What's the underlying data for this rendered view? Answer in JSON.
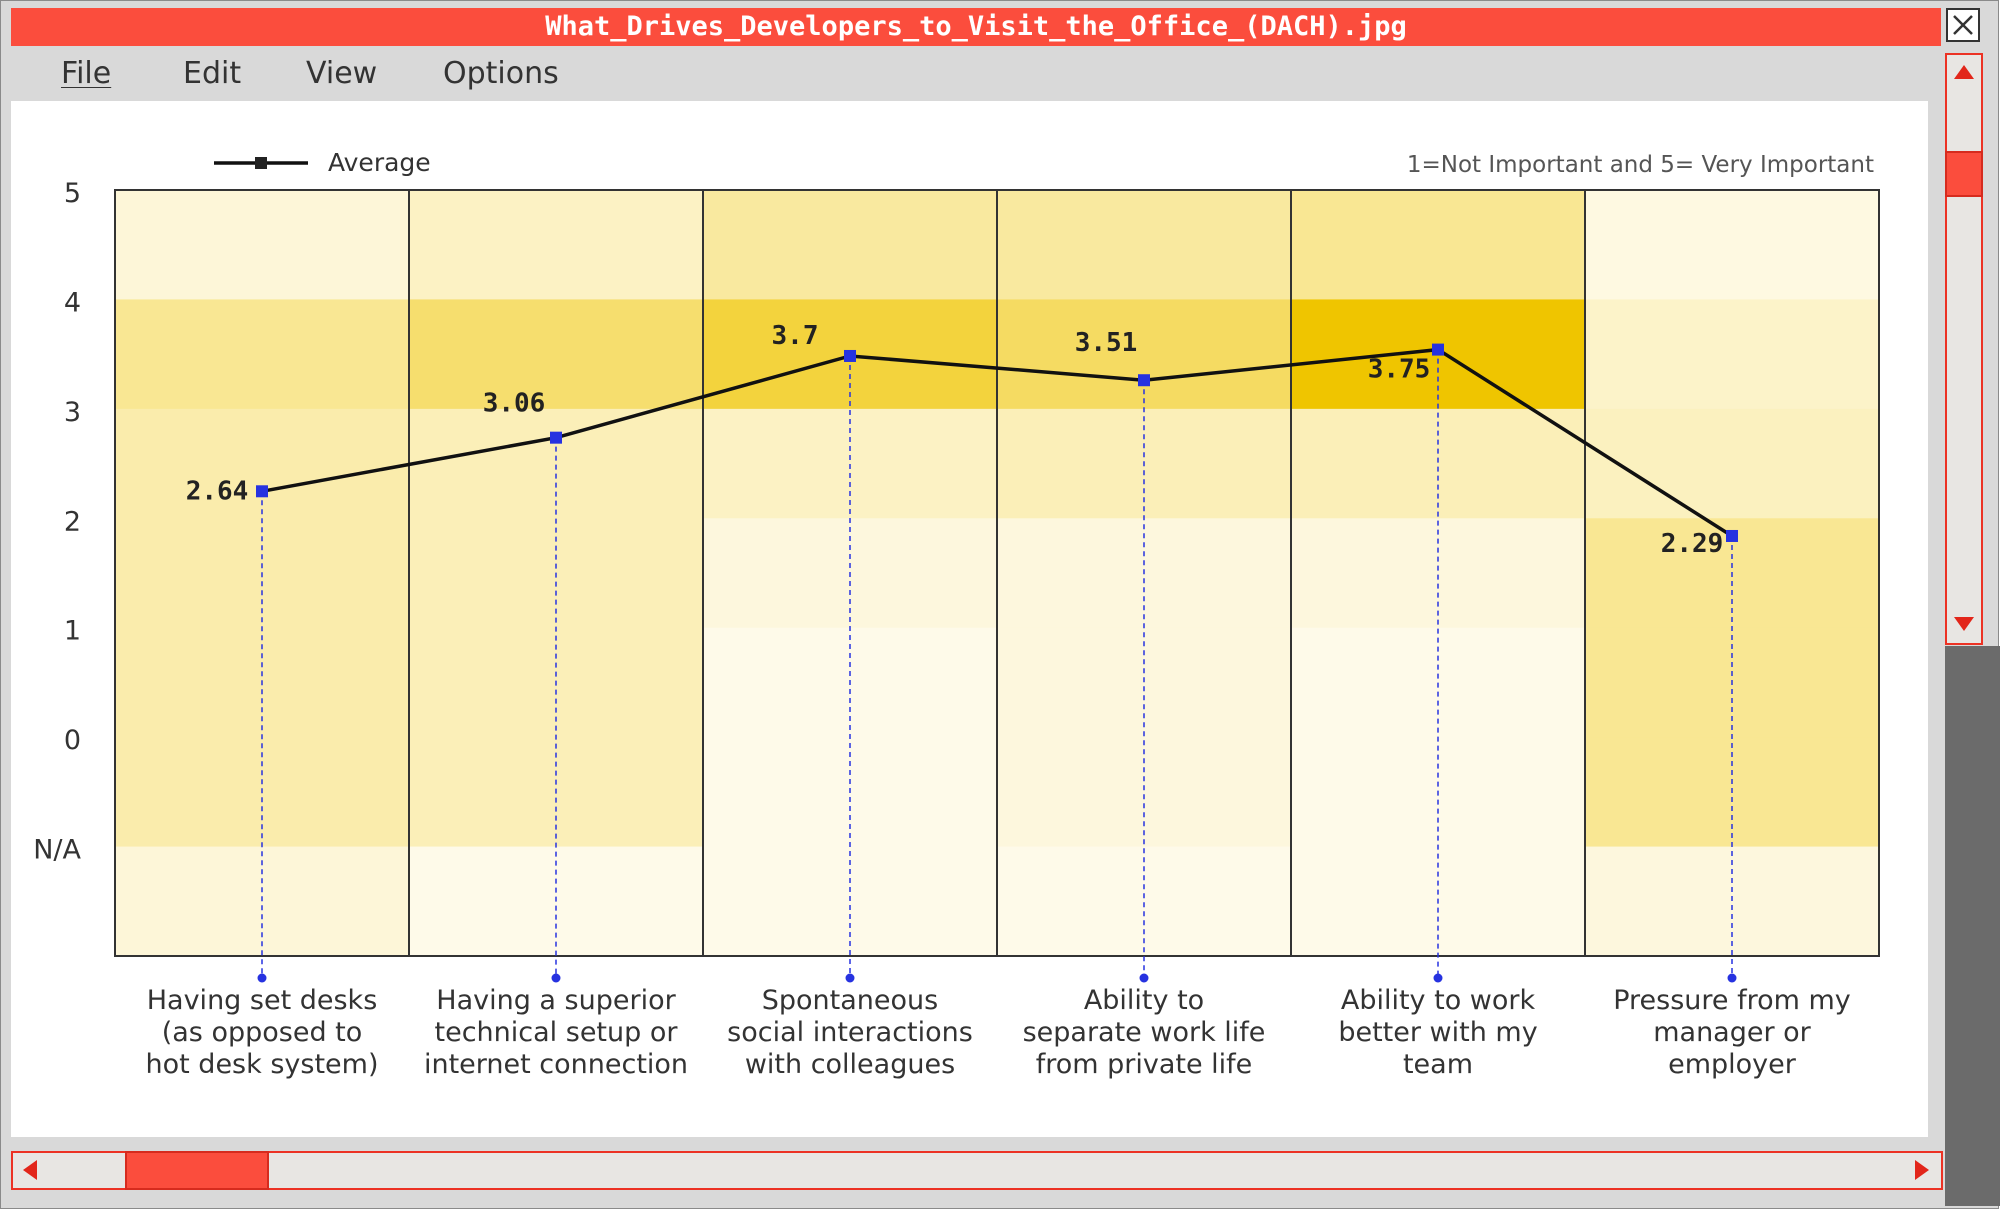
{
  "window": {
    "title": "What_Drives_Developers_to_Visit_the_Office_(DACH).jpg",
    "menu": [
      "File",
      "Edit",
      "View",
      "Options"
    ],
    "accent_color": "#fb4d3d",
    "icons": {
      "close": "close-x-icon",
      "scroll_up": "triangle-up-icon",
      "scroll_down": "triangle-down-icon",
      "scroll_left": "triangle-left-icon",
      "scroll_right": "triangle-right-icon"
    },
    "scroll": {
      "vertical_thumb_fraction": 0.15,
      "horizontal_thumb_fraction": 0.06
    }
  },
  "chart_data": {
    "type": "heatmap",
    "subtitle": "1=Not Important and 5= Very Important",
    "legend": {
      "label": "Average",
      "position": "top-left"
    },
    "y_ticks": [
      "5",
      "4",
      "3",
      "2",
      "1",
      "0",
      "N/A"
    ],
    "categories": [
      "Having set desks (as opposed to hot desk system)",
      "Having a superior technical setup or internet connection",
      "Spontaneous social interactions with colleagues",
      "Ability to separate work life from private life",
      "Ability to work better with my team",
      "Pressure from my manager or employer"
    ],
    "category_lines": [
      [
        "Having set desks",
        "(as opposed to",
        "hot desk system)"
      ],
      [
        "Having a superior",
        "technical setup or",
        "internet connection"
      ],
      [
        "Spontaneous",
        "social interactions",
        "with colleagues"
      ],
      [
        "Ability to",
        "separate work life",
        "from private life"
      ],
      [
        "Ability to work",
        "better with my",
        "team"
      ],
      [
        "Pressure from my",
        "manager or",
        "employer"
      ]
    ],
    "series": [
      {
        "name": "Average",
        "values": [
          2.64,
          3.06,
          3.7,
          3.51,
          3.75,
          2.29
        ]
      }
    ],
    "value_labels": [
      "2.64",
      "3.06",
      "3.7",
      "3.51",
      "3.75",
      "2.29"
    ],
    "heatmap_scale": [
      0,
      1
    ],
    "heatmap_intensity": [
      [
        0.12,
        0.4,
        0.3,
        0.3,
        0.3,
        0.3,
        0.12
      ],
      [
        0.2,
        0.55,
        0.25,
        0.25,
        0.25,
        0.25,
        0.05
      ],
      [
        0.35,
        0.75,
        0.2,
        0.1,
        0.05,
        0.05,
        0.05
      ],
      [
        0.35,
        0.6,
        0.25,
        0.1,
        0.1,
        0.1,
        0.05
      ],
      [
        0.4,
        1.0,
        0.25,
        0.1,
        0.05,
        0.05,
        0.05
      ],
      [
        0.08,
        0.18,
        0.22,
        0.4,
        0.4,
        0.4,
        0.1
      ]
    ],
    "colors": {
      "cell_low": "#fffdf5",
      "cell_high": "#efc500",
      "line": "#111111",
      "marker": "#2632e0",
      "grid": "#333333"
    },
    "grid": false
  }
}
